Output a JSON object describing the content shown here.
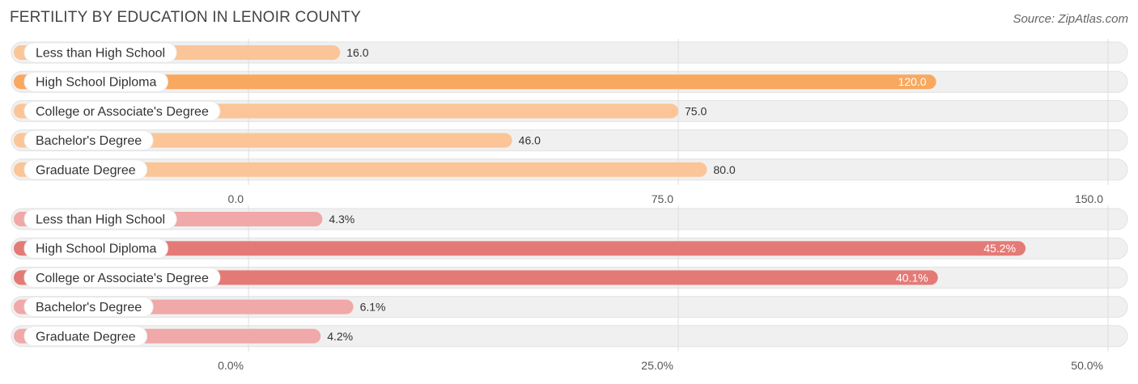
{
  "title": "FERTILITY BY EDUCATION IN LENOIR COUNTY",
  "source": "Source: ZipAtlas.com",
  "chart_data": [
    {
      "type": "bar",
      "orientation": "horizontal",
      "categories": [
        "Less than High School",
        "High School Diploma",
        "College or Associate's Degree",
        "Bachelor's Degree",
        "Graduate Degree"
      ],
      "values": [
        16.0,
        120.0,
        75.0,
        46.0,
        80.0
      ],
      "value_labels": [
        "16.0",
        "120.0",
        "75.0",
        "46.0",
        "80.0"
      ],
      "xlim": [
        0,
        150
      ],
      "ticks": [
        0,
        75,
        150
      ],
      "tick_labels": [
        "0.0",
        "75.0",
        "150.0"
      ],
      "colors": {
        "bar": "#fbc597",
        "bar_highlight": "#f9a85f",
        "track": "#f0f0f0"
      },
      "highlight_categories": [
        "High School Diploma"
      ],
      "grid": true
    },
    {
      "type": "bar",
      "orientation": "horizontal",
      "categories": [
        "Less than High School",
        "High School Diploma",
        "College or Associate's Degree",
        "Bachelor's Degree",
        "Graduate Degree"
      ],
      "values": [
        4.3,
        45.2,
        40.1,
        6.1,
        4.2
      ],
      "value_labels": [
        "4.3%",
        "45.2%",
        "40.1%",
        "6.1%",
        "4.2%"
      ],
      "xlim": [
        0,
        50
      ],
      "ticks": [
        0,
        25,
        50
      ],
      "tick_labels": [
        "0.0%",
        "25.0%",
        "50.0%"
      ],
      "colors": {
        "bar": "#f0a8a8",
        "bar_highlight": "#e47a76",
        "track": "#f0f0f0"
      },
      "highlight_categories": [
        "High School Diploma",
        "College or Associate's Degree"
      ],
      "grid": true
    }
  ]
}
